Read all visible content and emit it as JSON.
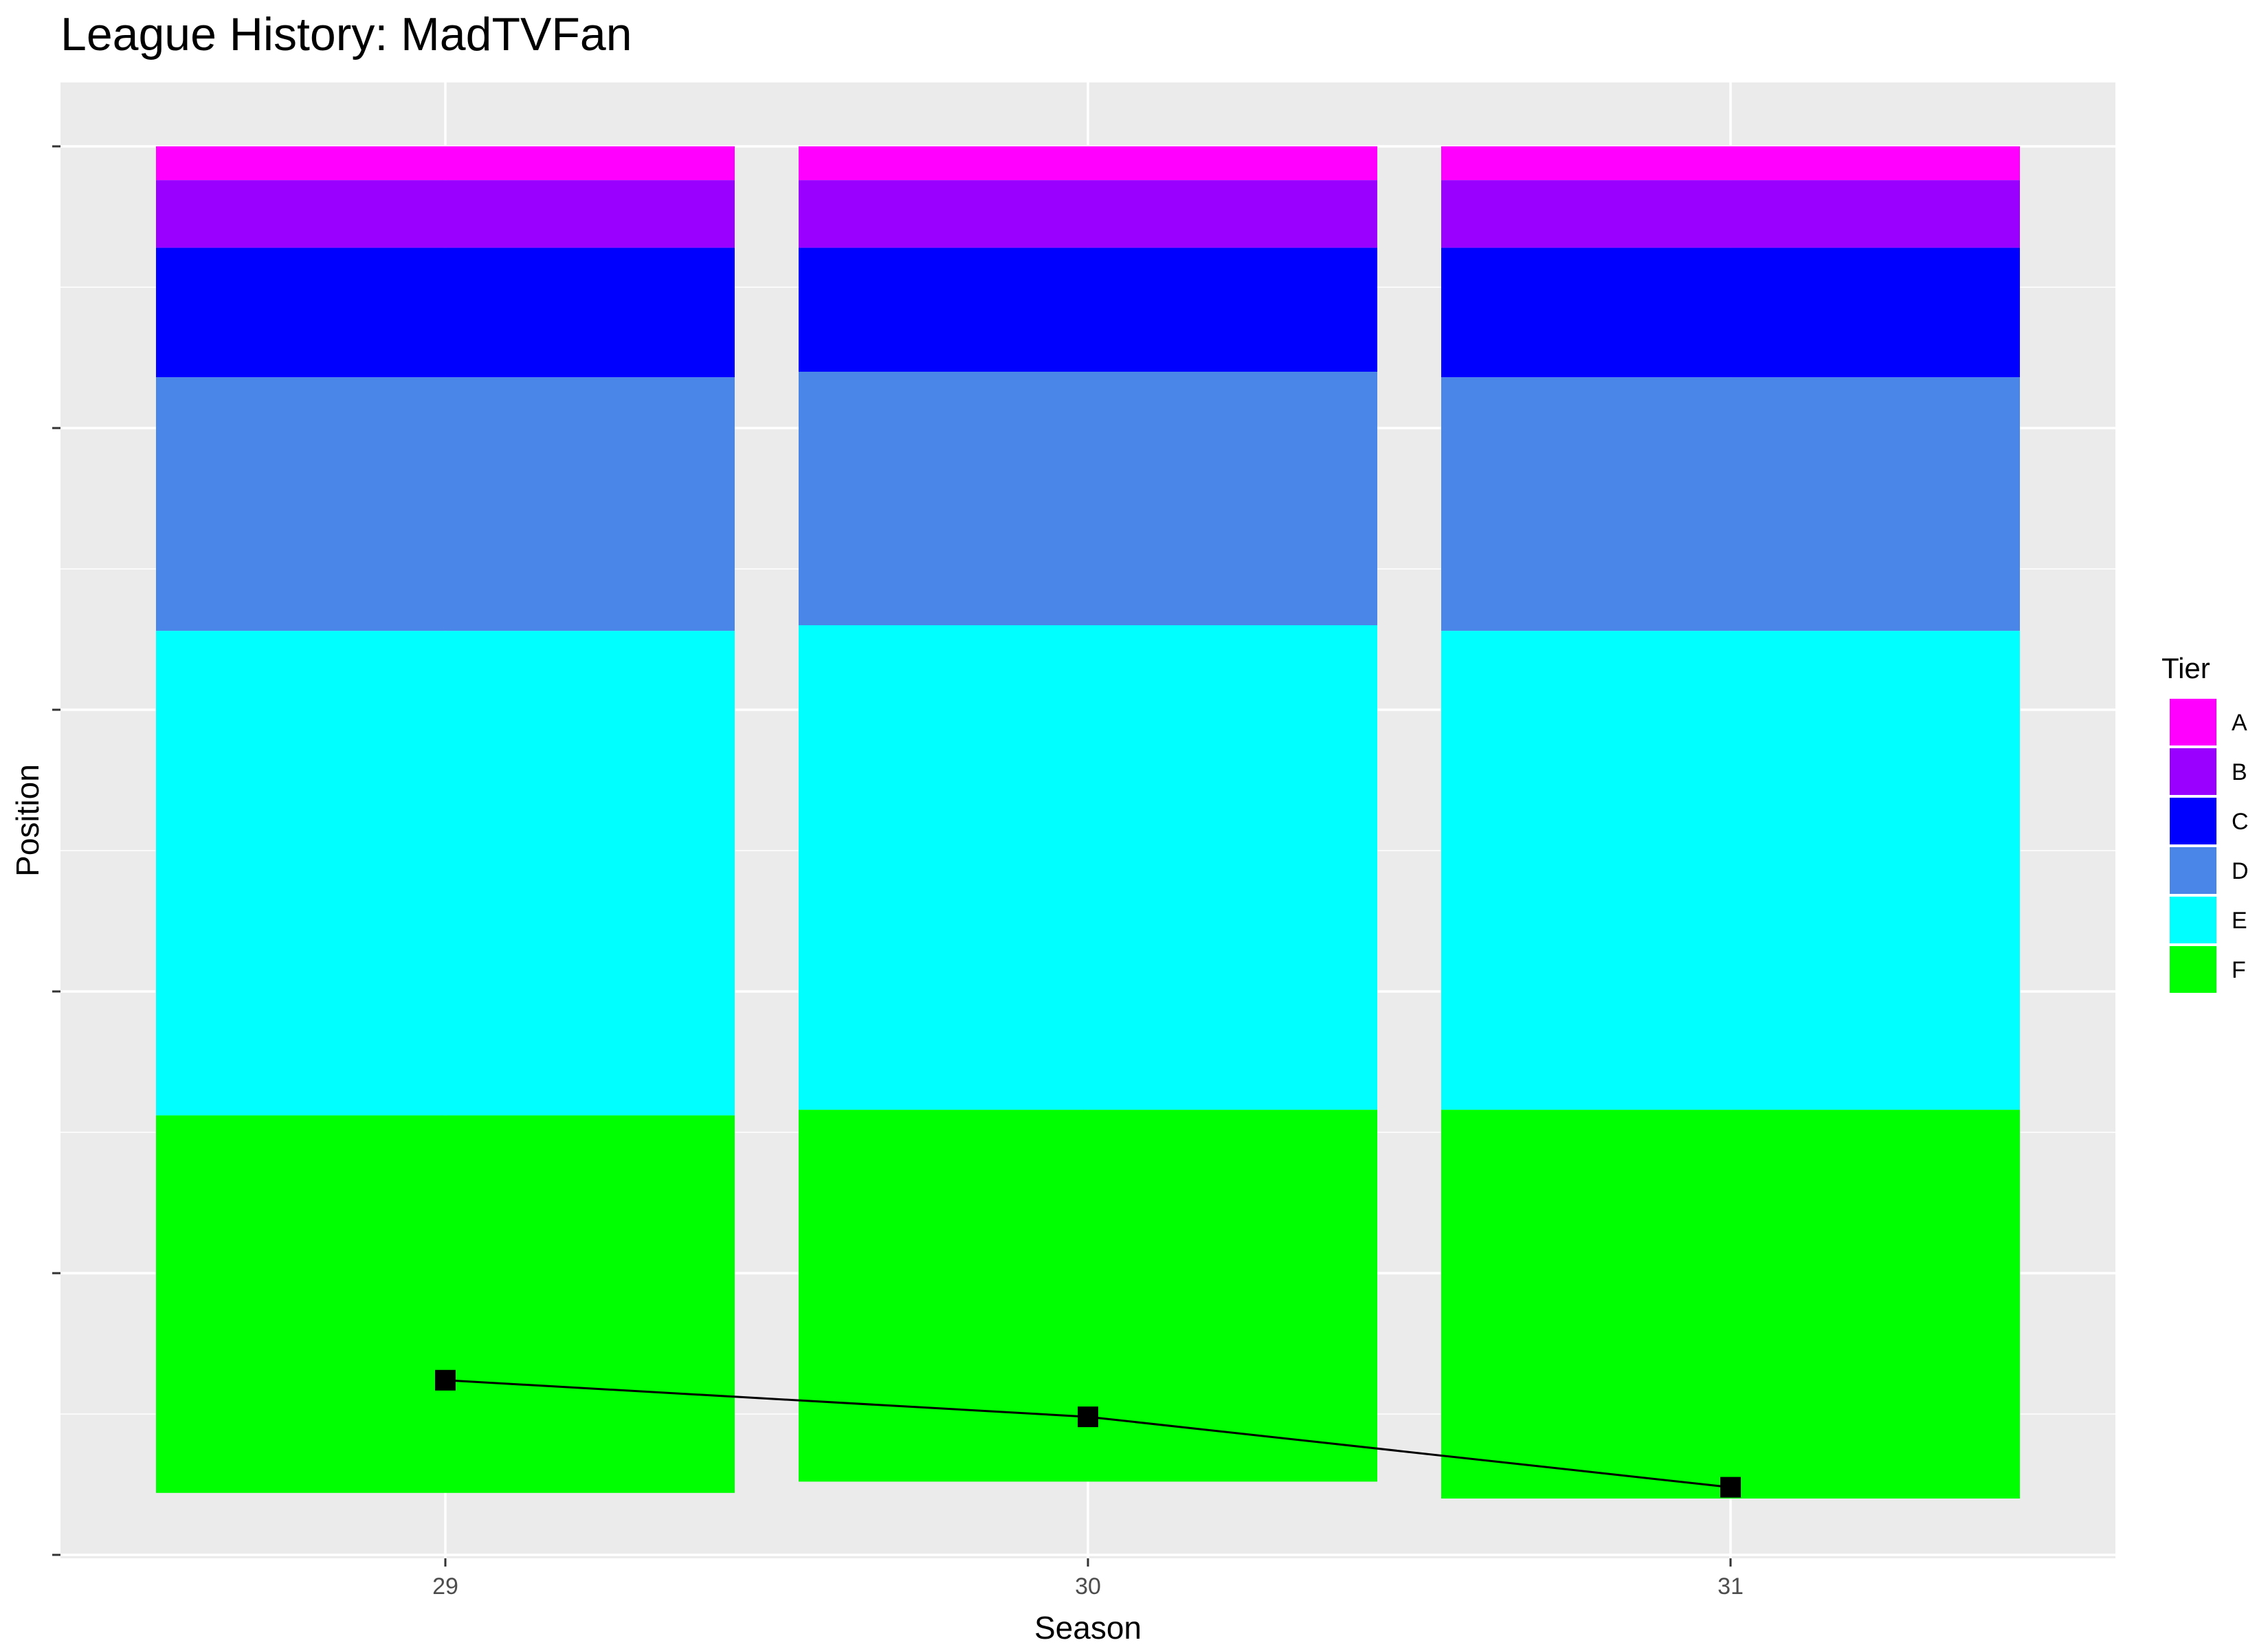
{
  "chart_data": {
    "type": "bar",
    "title": "League History: MadTVFan",
    "xlabel": "Season",
    "ylabel": "Position",
    "categories": [
      "29",
      "30",
      "31"
    ],
    "tiers": [
      "A",
      "B",
      "C",
      "D",
      "E",
      "F"
    ],
    "tier_colors": {
      "A": "#FF00FF",
      "B": "#9900FF",
      "C": "#0000FF",
      "D": "#4A86E8",
      "E": "#00FFFF",
      "F": "#00FF00"
    },
    "series": [
      {
        "name": "A",
        "values": [
          12,
          12,
          12
        ]
      },
      {
        "name": "B",
        "values": [
          24,
          24,
          24
        ]
      },
      {
        "name": "C",
        "values": [
          46,
          44,
          46
        ]
      },
      {
        "name": "D",
        "values": [
          90,
          90,
          90
        ]
      },
      {
        "name": "E",
        "values": [
          172,
          172,
          170
        ]
      },
      {
        "name": "F",
        "values": [
          134,
          132,
          138
        ]
      }
    ],
    "position_line": {
      "x": [
        "29",
        "30",
        "31"
      ],
      "y": [
        438,
        451,
        476
      ]
    },
    "ylim": [
      0,
      500
    ],
    "y_reversed": true,
    "y_ticks": [
      0,
      100,
      200,
      300,
      400,
      500
    ],
    "y_tick_labels_shown": false,
    "grid": true,
    "legend": {
      "title": "Tier",
      "position": "right"
    }
  }
}
